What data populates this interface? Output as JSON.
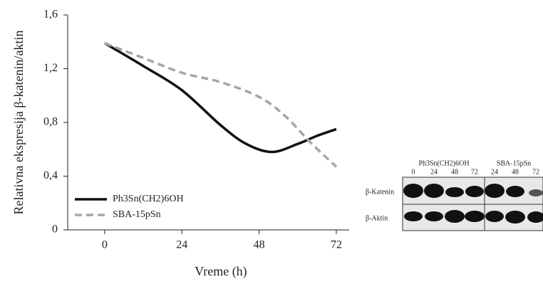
{
  "chart_data": {
    "type": "line",
    "x_label": "Vreme (h)",
    "y_label": "Relativna ekspresija β-katenin/aktin",
    "xlim": [
      -11.5,
      76
    ],
    "xticks": [
      0,
      24,
      48,
      72
    ],
    "ylim": [
      0,
      1.6
    ],
    "yticks": [
      0,
      {
        "value": 0.4,
        "label": "0,4"
      },
      {
        "value": 0.8,
        "label": "0,8"
      },
      {
        "value": 1.2,
        "label": "1,2"
      },
      {
        "value": 1.6,
        "label": "1,6"
      }
    ],
    "legend": "lower left",
    "series": [
      {
        "name": "Ph3Sn(CH2)6OH",
        "color": "#111111",
        "dash": false,
        "x": [
          0,
          12,
          24,
          36,
          44,
          52,
          60,
          66,
          72
        ],
        "values": [
          1.39,
          1.22,
          1.04,
          0.78,
          0.64,
          0.58,
          0.64,
          0.7,
          0.75
        ]
      },
      {
        "name": "SBA-15pSn",
        "color": "#a6a6a6",
        "dash": true,
        "x": [
          0,
          12,
          24,
          36,
          48,
          56,
          64,
          72
        ],
        "values": [
          1.39,
          1.28,
          1.17,
          1.1,
          0.99,
          0.85,
          0.65,
          0.47
        ]
      }
    ]
  },
  "blot": {
    "groups": [
      "Ph3Sn(CH2)6OH",
      "SBA-15pSn"
    ],
    "lanes": [
      "0",
      "24",
      "48",
      "72",
      "24",
      "48",
      "72"
    ],
    "rows": [
      "β-Katenin",
      "β-Aktin"
    ]
  }
}
